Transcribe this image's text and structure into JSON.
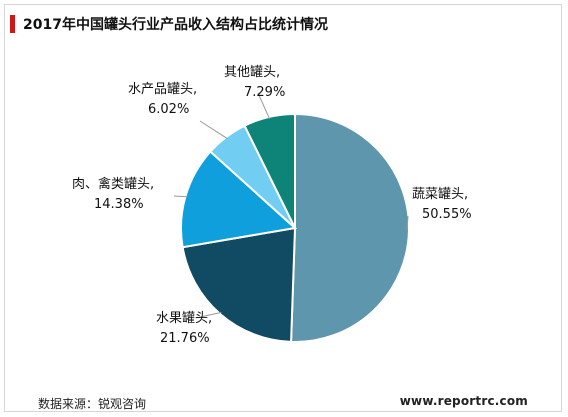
{
  "title": "2017年中国罐头行业产品收入结构占比统计情况",
  "source": "数据来源：锐观咨询",
  "watermark": "www.reportrc.com",
  "colors": {
    "title_accent": "#d01818"
  },
  "chart_data": {
    "type": "pie",
    "title": "2017年中国罐头行业产品收入结构占比统计情况",
    "unit": "%",
    "slices": [
      {
        "name": "蔬菜罐头",
        "name_label": "蔬菜罐头,",
        "value": 50.55,
        "value_label": "50.55%",
        "color": "#5e96ad"
      },
      {
        "name": "水果罐头",
        "name_label": "水果罐头,",
        "value": 21.76,
        "value_label": "21.76%",
        "color": "#114a63"
      },
      {
        "name": "肉、禽类罐头",
        "name_label": "肉、禽类罐头,",
        "value": 14.38,
        "value_label": "14.38%",
        "color": "#0e9fdc"
      },
      {
        "name": "水产品罐头",
        "name_label": "水产品罐头,",
        "value": 6.02,
        "value_label": "6.02%",
        "color": "#71cdf2"
      },
      {
        "name": "其他罐头",
        "name_label": "其他罐头,",
        "value": 7.29,
        "value_label": "7.29%",
        "color": "#0e8377"
      }
    ]
  }
}
